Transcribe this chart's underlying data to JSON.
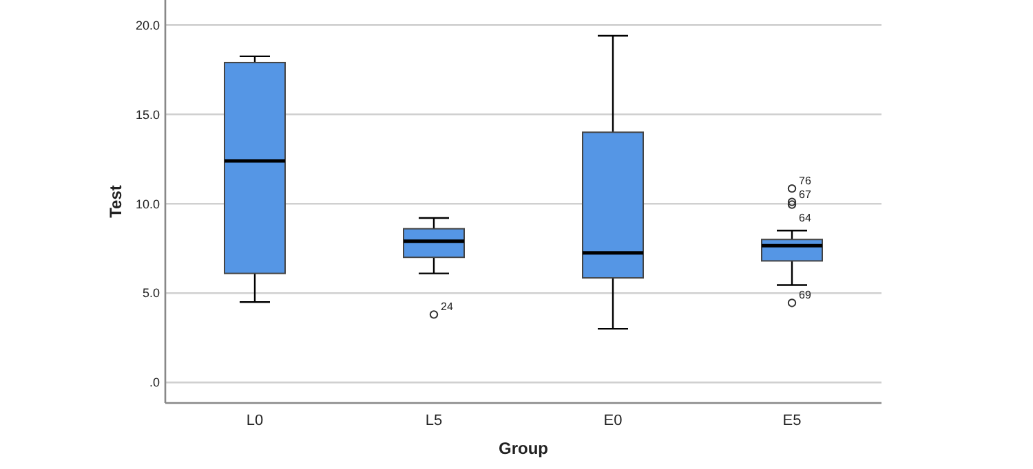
{
  "chart_data": {
    "type": "box",
    "xlabel": "Group",
    "ylabel": "Test",
    "categories": [
      "L0",
      "L5",
      "E0",
      "E5"
    ],
    "boxes": [
      {
        "low": 4.5,
        "q1": 6.1,
        "median": 12.4,
        "q3": 17.9,
        "high": 18.25
      },
      {
        "low": 6.1,
        "q1": 7.0,
        "median": 7.9,
        "q3": 8.6,
        "high": 9.2,
        "outliers": [
          3.8
        ]
      },
      {
        "low": 3.0,
        "q1": 5.85,
        "median": 7.25,
        "q3": 14.0,
        "high": 19.4
      },
      {
        "low": 5.45,
        "q1": 6.8,
        "median": 7.65,
        "q3": 8.0,
        "high": 8.5,
        "outliers": [
          10.85,
          10.1,
          9.95,
          4.45
        ]
      }
    ],
    "color": "#5596e5",
    "ylim": [
      -1.15,
      21.4
    ],
    "yticks": [
      {
        "value": 0,
        "label": ".0"
      },
      {
        "value": 5,
        "label": "5.0"
      },
      {
        "value": 10,
        "label": "10.0"
      },
      {
        "value": 15,
        "label": "15.0"
      },
      {
        "value": 20,
        "label": "20.0"
      }
    ],
    "grid": "y",
    "annotations": [
      "24",
      "76",
      "67",
      "64",
      "69"
    ]
  }
}
